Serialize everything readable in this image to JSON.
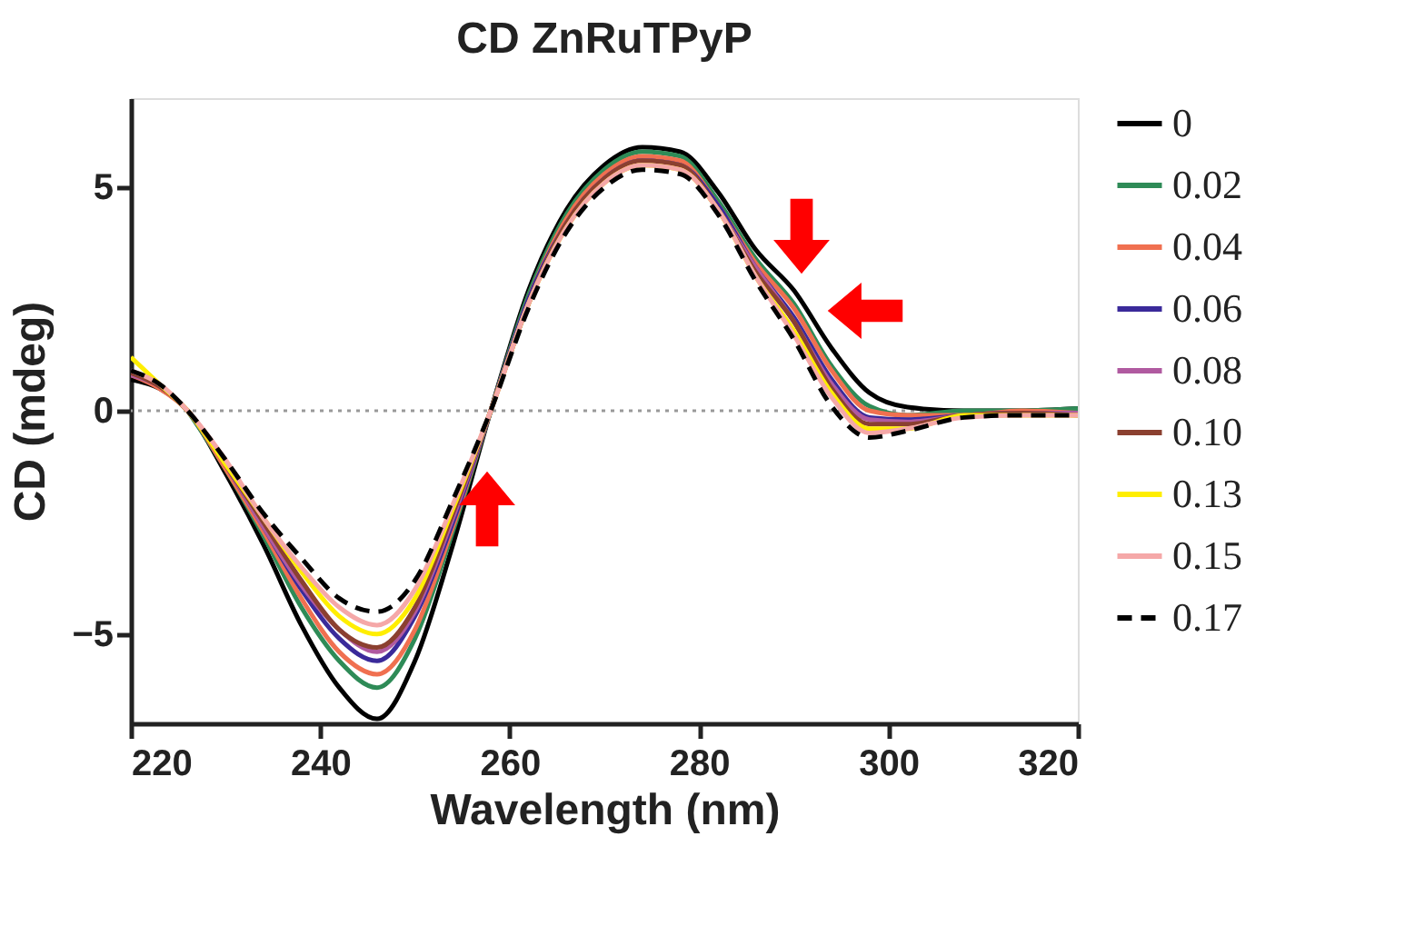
{
  "chart_data": {
    "type": "line",
    "title": "CD ZnRuTPyP",
    "xlabel": "Wavelength (nm)",
    "ylabel": "CD (mdeg)",
    "x": [
      220,
      223,
      226,
      230,
      234,
      238,
      242,
      246,
      250,
      254,
      258,
      262,
      266,
      270,
      274,
      278,
      282,
      286,
      290,
      294,
      298,
      302,
      308,
      314,
      320
    ],
    "xlim": [
      220,
      320
    ],
    "xticks": [
      220,
      240,
      260,
      280,
      300,
      320
    ],
    "ylim": [
      -7,
      7
    ],
    "yticks": [
      -5,
      0,
      5
    ],
    "grid": false,
    "legend": "right",
    "marker": "none",
    "ref_lines": [
      {
        "axis": "y",
        "value": 0,
        "color": "#999999",
        "line_style": "dotted"
      }
    ],
    "series": [
      {
        "name": "0",
        "color": "#000000",
        "line_style": "solid",
        "values": [
          0.7,
          0.5,
          0.0,
          -1.4,
          -3.0,
          -4.8,
          -6.2,
          -6.9,
          -5.6,
          -3.0,
          0.0,
          2.7,
          4.5,
          5.5,
          5.9,
          5.8,
          4.9,
          3.6,
          2.7,
          1.4,
          0.4,
          0.08,
          0.0,
          0.0,
          0.05
        ]
      },
      {
        "name": "0.02",
        "color": "#2e8b57",
        "line_style": "solid",
        "values": [
          null,
          null,
          0.0,
          -1.3,
          -2.8,
          -4.4,
          -5.6,
          -6.2,
          -5.1,
          -2.7,
          0.0,
          2.6,
          4.4,
          5.4,
          5.8,
          5.7,
          4.7,
          3.4,
          2.4,
          1.0,
          0.1,
          -0.1,
          0.0,
          0.0,
          0.05
        ]
      },
      {
        "name": "0.04",
        "color": "#f07050",
        "line_style": "solid",
        "values": [
          0.8,
          0.5,
          0.0,
          -1.3,
          -2.7,
          -4.2,
          -5.4,
          -5.9,
          -4.9,
          -2.6,
          0.0,
          2.5,
          4.3,
          5.3,
          5.7,
          5.6,
          4.6,
          3.3,
          2.3,
          0.9,
          0.0,
          -0.1,
          -0.1,
          0.0,
          -0.05
        ]
      },
      {
        "name": "0.06",
        "color": "#3a2a9a",
        "line_style": "solid",
        "values": [
          null,
          null,
          null,
          -1.2,
          -2.6,
          -4.0,
          -5.1,
          -5.6,
          -4.6,
          -2.5,
          0.0,
          2.5,
          4.2,
          5.2,
          5.6,
          5.5,
          4.6,
          3.2,
          2.1,
          0.7,
          -0.15,
          -0.2,
          -0.1,
          -0.05,
          -0.05
        ]
      },
      {
        "name": "0.08",
        "color": "#b05aa0",
        "line_style": "solid",
        "values": [
          0.8,
          0.55,
          0.0,
          -1.2,
          -2.6,
          -3.9,
          -4.9,
          -5.4,
          -4.5,
          -2.4,
          0.0,
          2.4,
          4.2,
          5.2,
          5.6,
          5.5,
          4.5,
          3.2,
          2.0,
          0.6,
          -0.2,
          -0.25,
          -0.1,
          -0.05,
          -0.05
        ]
      },
      {
        "name": "0.10",
        "color": "#8b4030",
        "line_style": "solid",
        "values": [
          0.85,
          0.55,
          0.0,
          -1.2,
          -2.5,
          -3.8,
          -4.9,
          -5.3,
          -4.4,
          -2.3,
          0.0,
          2.4,
          4.2,
          5.2,
          5.6,
          5.5,
          4.5,
          3.1,
          2.0,
          0.5,
          -0.3,
          -0.3,
          -0.1,
          -0.05,
          -0.1
        ]
      },
      {
        "name": "0.13",
        "color": "#ffee00",
        "line_style": "solid",
        "values": [
          1.2,
          0.6,
          0.0,
          -1.2,
          -2.4,
          -3.6,
          -4.6,
          -5.0,
          -4.2,
          -2.2,
          0.0,
          2.4,
          4.1,
          5.1,
          5.5,
          5.4,
          4.5,
          3.0,
          1.8,
          0.4,
          -0.4,
          -0.4,
          -0.1,
          -0.1,
          -0.1
        ]
      },
      {
        "name": "0.15",
        "color": "#f5a8a8",
        "line_style": "solid",
        "values": [
          0.9,
          0.6,
          0.0,
          -1.1,
          -2.4,
          -3.5,
          -4.4,
          -4.8,
          -4.0,
          -2.1,
          0.0,
          2.4,
          4.1,
          5.1,
          5.5,
          5.4,
          4.5,
          3.0,
          1.7,
          0.3,
          -0.5,
          -0.4,
          -0.15,
          -0.1,
          -0.1
        ]
      },
      {
        "name": "0.17",
        "color": "#000000",
        "line_style": "dashed",
        "values": [
          0.9,
          0.6,
          0.0,
          -1.1,
          -2.3,
          -3.3,
          -4.2,
          -4.5,
          -3.8,
          -2.0,
          0.0,
          2.3,
          4.0,
          5.0,
          5.4,
          5.3,
          4.4,
          2.9,
          1.6,
          0.1,
          -0.6,
          -0.45,
          -0.15,
          -0.1,
          -0.1
        ]
      }
    ]
  }
}
